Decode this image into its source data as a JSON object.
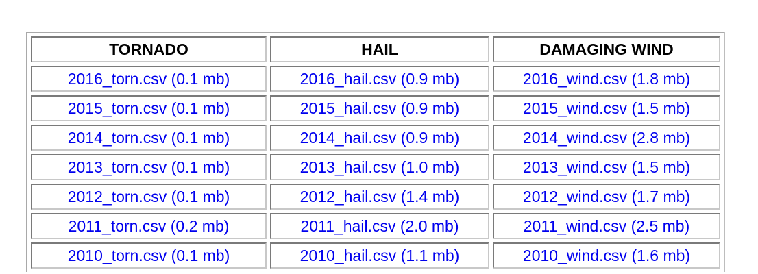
{
  "table": {
    "headers": [
      "TORNADO",
      "HAIL",
      "DAMAGING WIND"
    ],
    "rows": [
      [
        "2016_torn.csv (0.1 mb)",
        "2016_hail.csv (0.9 mb)",
        "2016_wind.csv (1.8 mb)"
      ],
      [
        "2015_torn.csv (0.1 mb)",
        "2015_hail.csv (0.9 mb)",
        "2015_wind.csv (1.5 mb)"
      ],
      [
        "2014_torn.csv (0.1 mb)",
        "2014_hail.csv (0.9 mb)",
        "2014_wind.csv (2.8 mb)"
      ],
      [
        "2013_torn.csv (0.1 mb)",
        "2013_hail.csv (1.0 mb)",
        "2013_wind.csv (1.5 mb)"
      ],
      [
        "2012_torn.csv (0.1 mb)",
        "2012_hail.csv (1.4 mb)",
        "2012_wind.csv (1.7 mb)"
      ],
      [
        "2011_torn.csv (0.2 mb)",
        "2011_hail.csv (2.0 mb)",
        "2011_wind.csv (2.5 mb)"
      ],
      [
        "2010_torn.csv (0.1 mb)",
        "2010_hail.csv (1.1 mb)",
        "2010_wind.csv (1.6 mb)"
      ]
    ]
  },
  "colors": {
    "link": "#0000ee",
    "header_text": "#000000",
    "border": "#7a7a7a"
  }
}
